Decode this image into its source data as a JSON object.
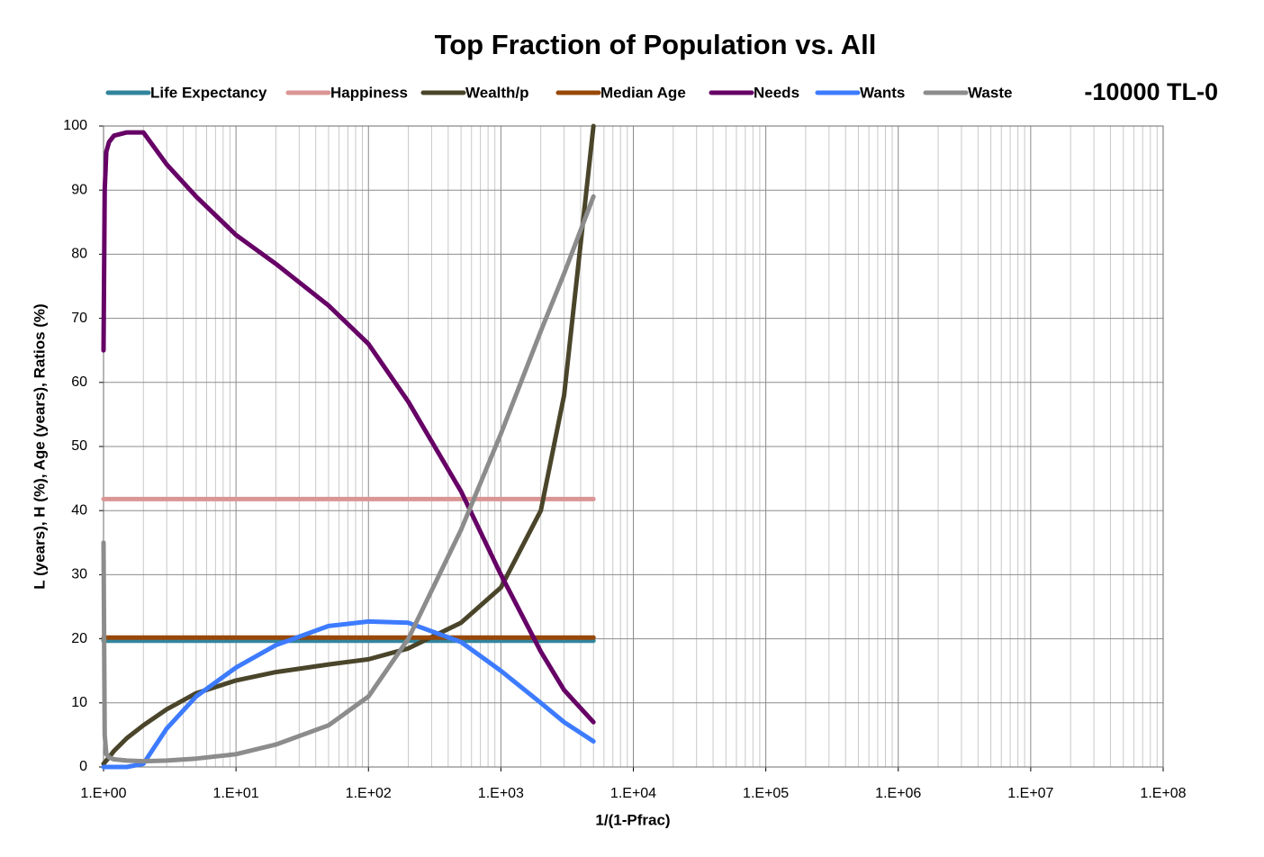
{
  "chart_data": {
    "type": "line",
    "title": "Top Fraction of Population vs. All",
    "annotation": "-10000 TL-0",
    "x_label": "1/(1-Pfrac)",
    "y_label": "L (years), H (%), Age (years), Ratios (%)",
    "x_scale": "log",
    "grid": true,
    "x": [
      1,
      1.02,
      1.05,
      1.1,
      1.2,
      1.5,
      2,
      3,
      5,
      10,
      20,
      50,
      100,
      200,
      500,
      1000,
      2000,
      3000,
      5000
    ],
    "series": [
      {
        "name": "Life Expectancy",
        "color": "#31859c",
        "values": [
          19.7,
          19.7,
          19.7,
          19.7,
          19.7,
          19.7,
          19.7,
          19.7,
          19.7,
          19.7,
          19.7,
          19.7,
          19.7,
          19.7,
          19.7,
          19.7,
          19.7,
          19.7,
          19.7
        ]
      },
      {
        "name": "Happiness",
        "color": "#d99694",
        "values": [
          41.8,
          41.8,
          41.8,
          41.8,
          41.8,
          41.8,
          41.8,
          41.8,
          41.8,
          41.8,
          41.8,
          41.8,
          41.8,
          41.8,
          41.8,
          41.8,
          41.8,
          41.8,
          41.8
        ]
      },
      {
        "name": "Wealth/p",
        "color": "#4a452a",
        "values": [
          0.5,
          0.7,
          1,
          1.5,
          2.5,
          4.5,
          6.5,
          9,
          11.5,
          13.5,
          14.8,
          16,
          16.8,
          18.5,
          22.5,
          28,
          40,
          58,
          100
        ]
      },
      {
        "name": "Median Age",
        "color": "#984807",
        "values": [
          20.2,
          20.2,
          20.2,
          20.2,
          20.2,
          20.2,
          20.2,
          20.2,
          20.2,
          20.2,
          20.2,
          20.2,
          20.2,
          20.2,
          20.2,
          20.2,
          20.2,
          20.2,
          20.2
        ]
      },
      {
        "name": "Needs",
        "color": "#660066",
        "values": [
          65,
          90,
          96,
          97.5,
          98.5,
          99,
          99,
          94,
          89,
          83,
          78.5,
          72,
          66,
          57,
          43,
          30,
          18,
          12,
          7
        ]
      },
      {
        "name": "Wants",
        "color": "#3d7bff",
        "values": [
          0,
          0,
          0,
          0,
          0,
          0,
          0.5,
          6,
          11,
          15.5,
          19,
          22,
          22.7,
          22.5,
          19.5,
          15,
          10,
          7,
          4
        ]
      },
      {
        "name": "Waste",
        "color": "#8c8c8c",
        "values": [
          35,
          5,
          2,
          1.5,
          1.2,
          1,
          0.9,
          1,
          1.3,
          2,
          3.5,
          6.5,
          11,
          20,
          37,
          52,
          68,
          77,
          89
        ]
      }
    ],
    "xlim": [
      1,
      100000000
    ],
    "xticks": [
      {
        "value": 1,
        "label": "1.E+00"
      },
      {
        "value": 10,
        "label": "1.E+01"
      },
      {
        "value": 100,
        "label": "1.E+02"
      },
      {
        "value": 1000,
        "label": "1.E+03"
      },
      {
        "value": 10000,
        "label": "1.E+04"
      },
      {
        "value": 100000,
        "label": "1.E+05"
      },
      {
        "value": 1000000,
        "label": "1.E+06"
      },
      {
        "value": 10000000,
        "label": "1.E+07"
      },
      {
        "value": 100000000,
        "label": "1.E+08"
      }
    ],
    "ylim": [
      0,
      100
    ],
    "yticks": [
      0,
      10,
      20,
      30,
      40,
      50,
      60,
      70,
      80,
      90,
      100
    ]
  }
}
